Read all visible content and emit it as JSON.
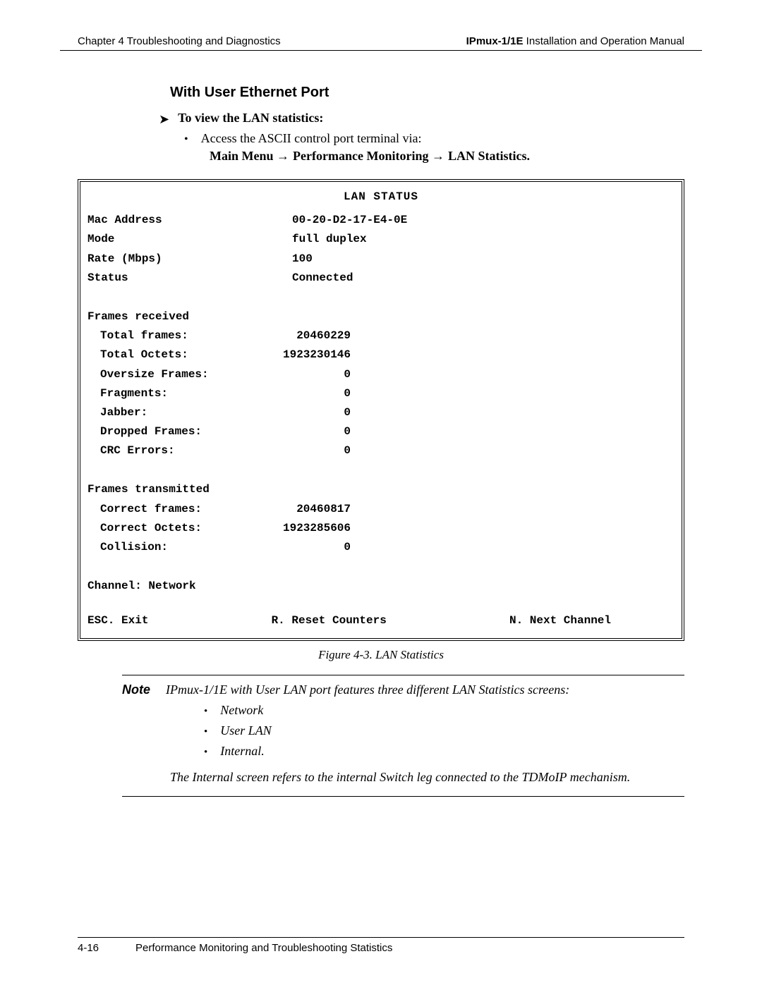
{
  "header": {
    "left": "Chapter 4  Troubleshooting and Diagnostics",
    "product_bold": "IPmux-1/1E",
    "product_rest": " Installation and Operation Manual"
  },
  "section_title": "With User Ethernet Port",
  "instruction": "To view the LAN statistics:",
  "access_line": "Access the ASCII control port terminal via:",
  "nav": {
    "a": "Main Menu",
    "b": "Performance Monitoring",
    "c": "LAN Statistics."
  },
  "terminal": {
    "title": "LAN STATUS",
    "top": [
      {
        "k": "Mac Address",
        "v": "00-20-D2-17-E4-0E"
      },
      {
        "k": "Mode",
        "v": "full duplex"
      },
      {
        "k": "Rate (Mbps)",
        "v": "100"
      },
      {
        "k": "Status",
        "v": "Connected"
      }
    ],
    "rx_header": "Frames received",
    "rx": [
      {
        "k": "Total frames:",
        "v": "20460229"
      },
      {
        "k": "Total Octets:",
        "v": "1923230146"
      },
      {
        "k": "Oversize Frames:",
        "v": "0"
      },
      {
        "k": "Fragments:",
        "v": "0"
      },
      {
        "k": "Jabber:",
        "v": "0"
      },
      {
        "k": "Dropped Frames:",
        "v": "0"
      },
      {
        "k": "CRC Errors:",
        "v": "0"
      }
    ],
    "tx_header": "Frames transmitted",
    "tx": [
      {
        "k": "Correct frames:",
        "v": "20460817"
      },
      {
        "k": "Correct Octets:",
        "v": "1923285606"
      },
      {
        "k": "Collision:",
        "v": "0"
      }
    ],
    "channel": "Channel: Network",
    "foot_left": "ESC. Exit",
    "foot_mid": "R. Reset Counters",
    "foot_right": "N. Next Channel"
  },
  "caption": "Figure 4-3.  LAN Statistics",
  "note": {
    "label": "Note",
    "lead": "IPmux-1/1E with User LAN port features three different LAN Statistics screens:",
    "bullets": [
      "Network",
      "User LAN",
      "Internal."
    ],
    "para": "The Internal screen refers to the internal Switch leg connected to the TDMoIP mechanism."
  },
  "footer": {
    "page": "4-16",
    "title": "Performance Monitoring and Troubleshooting Statistics"
  }
}
